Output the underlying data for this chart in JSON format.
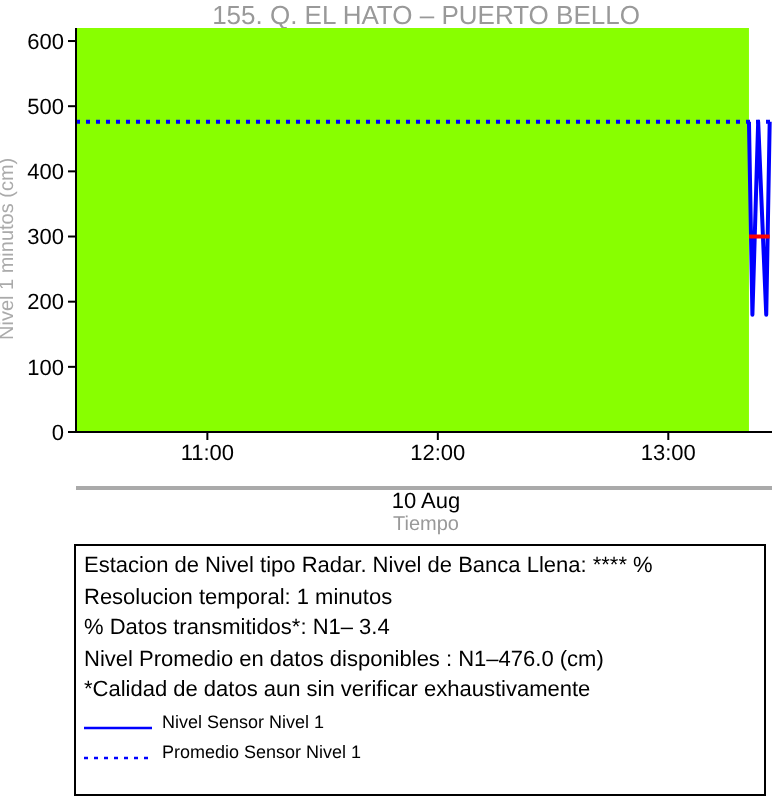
{
  "chart_data": {
    "type": "line",
    "title": "155. Q. EL HATO – PUERTO BELLO",
    "xlabel": "Tiempo",
    "ylabel": "Nivel 1 minutos (cm)",
    "xlim": [
      10.43,
      13.45
    ],
    "xticks": [
      {
        "value": 11,
        "label": "11:00"
      },
      {
        "value": 12,
        "label": "12:00"
      },
      {
        "value": 13,
        "label": "13:00"
      }
    ],
    "ylim": [
      0,
      620
    ],
    "yticks": [
      0,
      100,
      200,
      300,
      400,
      500,
      600
    ],
    "series": [
      {
        "name": "Nivel Sensor Nivel 1",
        "color": "#0000ff",
        "x": [
          13.35,
          13.365,
          13.39,
          13.425,
          13.44
        ],
        "values": [
          476,
          180,
          476,
          180,
          476
        ],
        "line_style": "solid"
      },
      {
        "name": "Promedio Sensor Nivel 1",
        "color": "#0000ff",
        "x": [
          10.43,
          13.45
        ],
        "values": [
          476,
          476
        ],
        "line_style": "dotted"
      },
      {
        "color": "#ff0000",
        "x": [
          13.35,
          13.44
        ],
        "values": [
          300,
          300
        ],
        "line_style": "solid"
      }
    ],
    "bands": [
      {
        "axis": "x",
        "from": 10.43,
        "to": 13.35,
        "color": "#88ff00"
      }
    ],
    "legend": "bottom",
    "grid": false,
    "annotations": [
      "10 Aug",
      "Estacion de Nivel tipo Radar. Nivel de Banca Llena: **** %",
      "Resolucion temporal: 1 minutos",
      "% Datos transmitidos*: N1–  3.4",
      "Nivel Promedio en datos disponibles : N1–476.0 (cm)",
      "*Calidad de datos aun sin verificar exhaustivamente"
    ]
  }
}
